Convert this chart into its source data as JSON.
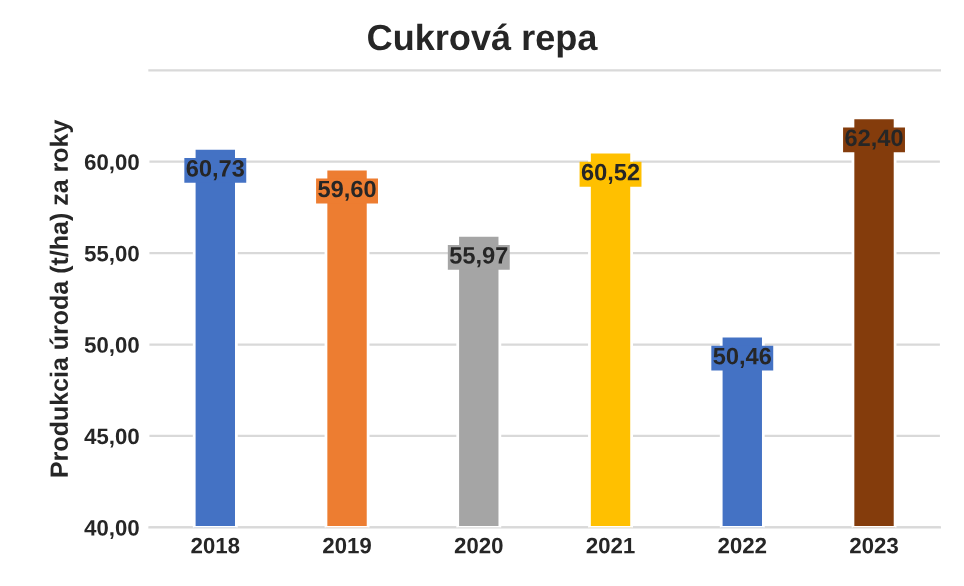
{
  "chart_data": {
    "type": "bar",
    "title": "Cukrová repa",
    "ylabel": "Produkcia úroda (t/ha) za roky",
    "categories": [
      "2018",
      "2019",
      "2020",
      "2021",
      "2022",
      "2023"
    ],
    "values": [
      60.73,
      59.6,
      55.97,
      60.52,
      50.46,
      62.4
    ],
    "colors": [
      "#4472c4",
      "#ed7d31",
      "#a5a5a5",
      "#ffc000",
      "#4472c4",
      "#843c0c"
    ],
    "value_labels": [
      "60,73",
      "59,60",
      "55,97",
      "60,52",
      "50,46",
      "62,40"
    ],
    "ylim": [
      40,
      65
    ],
    "yticks": [
      {
        "value": 40,
        "label": "40,00"
      },
      {
        "value": 45,
        "label": "45,00"
      },
      {
        "value": 50,
        "label": "50,00"
      },
      {
        "value": 55,
        "label": "55,00"
      },
      {
        "value": 60,
        "label": "60,00"
      }
    ],
    "grid": "y"
  }
}
